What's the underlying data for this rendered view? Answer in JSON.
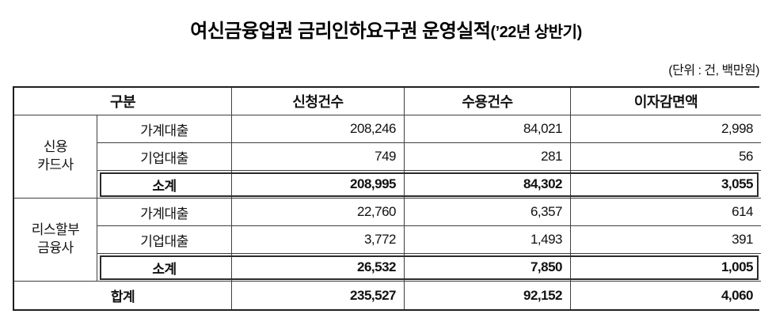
{
  "title": {
    "main": "여신금융업권 금리인하요구권 운영실적",
    "paren": "(’22년 상반기)"
  },
  "unit_note": "(단위 : 건, 백만원)",
  "table": {
    "headers": {
      "category": "구분",
      "applications": "신청건수",
      "acceptances": "수용건수",
      "interest_reduction": "이자감면액"
    },
    "groups": [
      {
        "name": "신용\n카드사",
        "rows": [
          {
            "label": "가계대출",
            "values": [
              "208,246",
              "84,021",
              "2,998"
            ]
          },
          {
            "label": "기업대출",
            "values": [
              "749",
              "281",
              "56"
            ]
          },
          {
            "label": "소계",
            "values": [
              "208,995",
              "84,302",
              "3,055"
            ]
          }
        ]
      },
      {
        "name": "리스할부\n금융사",
        "rows": [
          {
            "label": "가계대출",
            "values": [
              "22,760",
              "6,357",
              "614"
            ]
          },
          {
            "label": "기업대출",
            "values": [
              "3,772",
              "1,493",
              "391"
            ]
          },
          {
            "label": "소계",
            "values": [
              "26,532",
              "7,850",
              "1,005"
            ]
          }
        ]
      }
    ],
    "total": {
      "label": "합계",
      "values": [
        "235,527",
        "92,152",
        "4,060"
      ]
    }
  }
}
